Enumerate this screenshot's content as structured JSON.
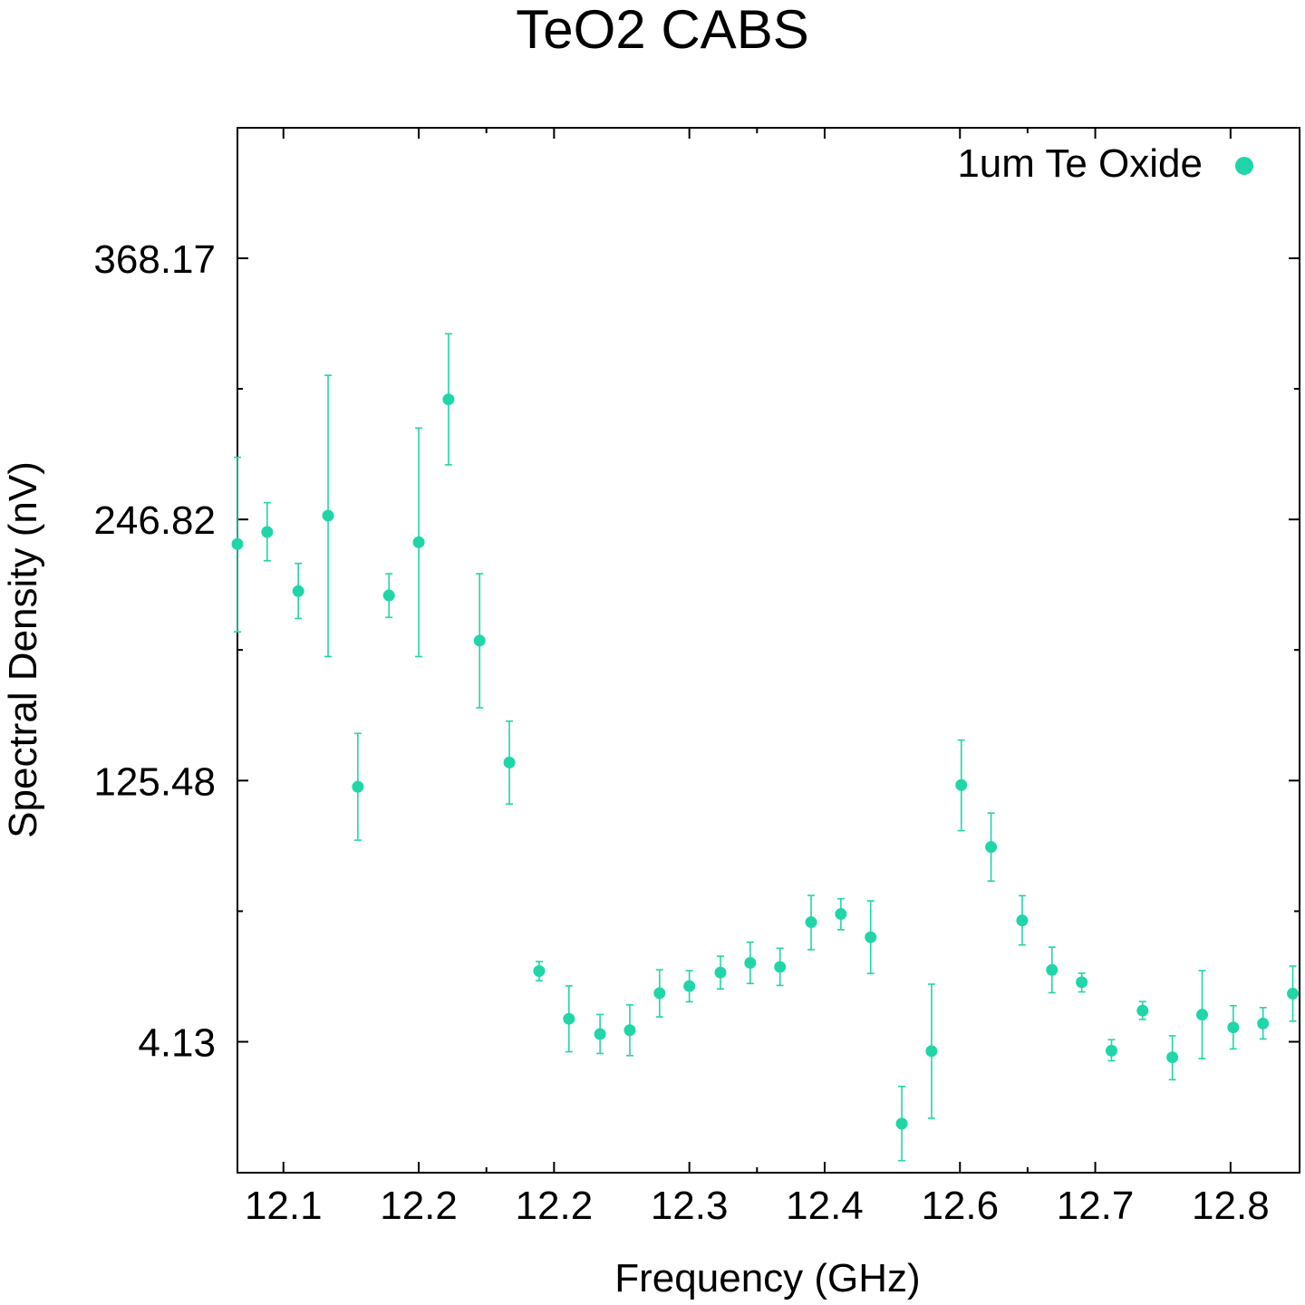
{
  "chart_data": {
    "type": "scatter",
    "title": "TeO2 CABS",
    "xlabel": "Frequency (GHz)",
    "ylabel": "Spectral Density (nV)",
    "xlim": [
      12.03,
      12.815
    ],
    "ylim": [
      -56.7,
      428.8
    ],
    "x_ticks": [
      {
        "value": 12.064,
        "label": "12.1"
      },
      {
        "value": 12.164,
        "label": "12.2"
      },
      {
        "value": 12.264,
        "label": "12.2"
      },
      {
        "value": 12.364,
        "label": "12.3"
      },
      {
        "value": 12.464,
        "label": "12.4"
      },
      {
        "value": 12.564,
        "label": "12.6"
      },
      {
        "value": 12.664,
        "label": "12.7"
      },
      {
        "value": 12.764,
        "label": "12.8"
      }
    ],
    "x_minor_ticks": [
      12.214,
      12.414,
      12.614
    ],
    "y_ticks": [
      {
        "value": 4.13,
        "label": "4.13"
      },
      {
        "value": 125.48,
        "label": "125.48"
      },
      {
        "value": 246.82,
        "label": "246.82"
      },
      {
        "value": 368.17,
        "label": "368.17"
      }
    ],
    "y_minor_ticks": [
      64.8,
      186.2,
      307.5
    ],
    "grid": false,
    "legend_position": "top-right",
    "series": [
      {
        "name": "1um Te Oxide",
        "color": "#20d6a8",
        "marker": "circle",
        "points": [
          {
            "x": 12.03,
            "y": 235.4,
            "err_low": 194.6,
            "err_high": 275.7
          },
          {
            "x": 12.052,
            "y": 241.0,
            "err_low": 227.6,
            "err_high": 254.6
          },
          {
            "x": 12.075,
            "y": 213.5,
            "err_low": 200.8,
            "err_high": 226.4
          },
          {
            "x": 12.097,
            "y": 248.6,
            "err_low": 183.1,
            "err_high": 313.8
          },
          {
            "x": 12.119,
            "y": 122.6,
            "err_low": 97.8,
            "err_high": 147.4
          },
          {
            "x": 12.142,
            "y": 211.5,
            "err_low": 201.3,
            "err_high": 221.6
          },
          {
            "x": 12.164,
            "y": 236.2,
            "err_low": 183.1,
            "err_high": 289.3
          },
          {
            "x": 12.186,
            "y": 302.6,
            "err_low": 272.2,
            "err_high": 333.1
          },
          {
            "x": 12.209,
            "y": 190.5,
            "err_low": 159.3,
            "err_high": 221.6
          },
          {
            "x": 12.231,
            "y": 133.9,
            "err_low": 114.6,
            "err_high": 153.1
          },
          {
            "x": 12.253,
            "y": 37.0,
            "err_low": 32.5,
            "err_high": 41.4
          },
          {
            "x": 12.275,
            "y": 14.8,
            "err_low": -0.5,
            "err_high": 30.1
          },
          {
            "x": 12.298,
            "y": 7.7,
            "err_low": -1.3,
            "err_high": 16.8
          },
          {
            "x": 12.32,
            "y": 9.5,
            "err_low": -2.3,
            "err_high": 21.3
          },
          {
            "x": 12.342,
            "y": 26.7,
            "err_low": 15.7,
            "err_high": 37.6
          },
          {
            "x": 12.364,
            "y": 30.0,
            "err_low": 22.7,
            "err_high": 37.2
          },
          {
            "x": 12.387,
            "y": 36.3,
            "err_low": 28.7,
            "err_high": 43.9
          },
          {
            "x": 12.409,
            "y": 40.8,
            "err_low": 31.2,
            "err_high": 50.4
          },
          {
            "x": 12.431,
            "y": 38.9,
            "err_low": 30.3,
            "err_high": 47.6
          },
          {
            "x": 12.454,
            "y": 59.7,
            "err_low": 46.9,
            "err_high": 72.1
          },
          {
            "x": 12.476,
            "y": 63.5,
            "err_low": 56.2,
            "err_high": 70.6
          },
          {
            "x": 12.498,
            "y": 52.7,
            "err_low": 35.9,
            "err_high": 69.6
          },
          {
            "x": 12.521,
            "y": -33.9,
            "err_low": -51.1,
            "err_high": -16.6
          },
          {
            "x": 12.543,
            "y": -0.2,
            "err_low": -31.4,
            "err_high": 30.9
          },
          {
            "x": 12.565,
            "y": 123.4,
            "err_low": 102.2,
            "err_high": 144.3
          },
          {
            "x": 12.587,
            "y": 94.6,
            "err_low": 78.8,
            "err_high": 110.4
          },
          {
            "x": 12.61,
            "y": 60.5,
            "err_low": 49.1,
            "err_high": 72.0
          },
          {
            "x": 12.632,
            "y": 37.5,
            "err_low": 26.9,
            "err_high": 48.1
          },
          {
            "x": 12.654,
            "y": 31.8,
            "err_low": 27.3,
            "err_high": 36.0
          },
          {
            "x": 12.676,
            "y": 0.0,
            "err_low": -4.7,
            "err_high": 5.1
          },
          {
            "x": 12.699,
            "y": 18.6,
            "err_low": 14.5,
            "err_high": 22.8
          },
          {
            "x": 12.721,
            "y": -3.1,
            "err_low": -13.5,
            "err_high": 6.9
          },
          {
            "x": 12.743,
            "y": 16.7,
            "err_low": -3.7,
            "err_high": 37.2
          },
          {
            "x": 12.766,
            "y": 10.8,
            "err_low": 0.8,
            "err_high": 20.9
          },
          {
            "x": 12.788,
            "y": 12.6,
            "err_low": 5.4,
            "err_high": 20.0
          },
          {
            "x": 12.81,
            "y": 26.5,
            "err_low": 13.7,
            "err_high": 39.3
          }
        ]
      }
    ]
  }
}
